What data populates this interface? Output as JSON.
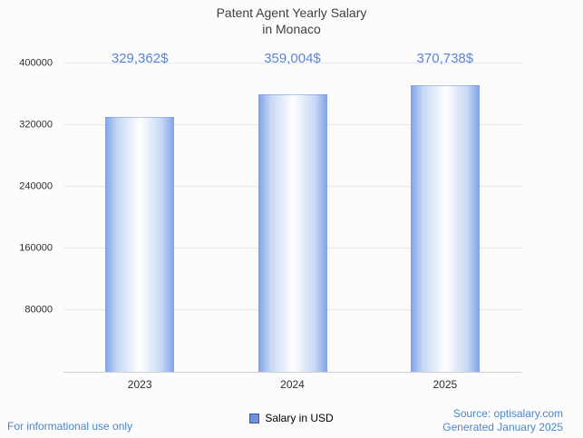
{
  "title": {
    "line1": "Patent Agent Yearly Salary",
    "line2": "in Monaco"
  },
  "chart_data": {
    "type": "bar",
    "title": "Patent Agent Yearly Salary in Monaco",
    "categories": [
      "2023",
      "2024",
      "2025"
    ],
    "values": [
      329362,
      359004,
      370738
    ],
    "value_labels": [
      "329,362$",
      "359,004$",
      "370,738$"
    ],
    "xlabel": "",
    "ylabel": "",
    "ylim": [
      0,
      400000
    ],
    "yticks": [
      80000,
      160000,
      240000,
      320000,
      400000
    ],
    "grid": true,
    "legend_position": "bottom",
    "series_name": "Salary in USD"
  },
  "legend": {
    "label": "Salary in USD"
  },
  "footer": {
    "left": "For informational use only",
    "source": "Source: optisalary.com",
    "generated": "Generated January 2025"
  },
  "colors": {
    "value_label": "#5b84d6",
    "footer_text": "#4a86c9",
    "bar_edge": "#7fa3e6",
    "bar_mid": "#c8d8f6",
    "bar_center": "#ffffff",
    "legend_swatch": "#6f91dc",
    "legend_swatch_border": "#3e56a0",
    "gridline": "#e9e9ec",
    "axis_line": "#cfcfcf"
  }
}
